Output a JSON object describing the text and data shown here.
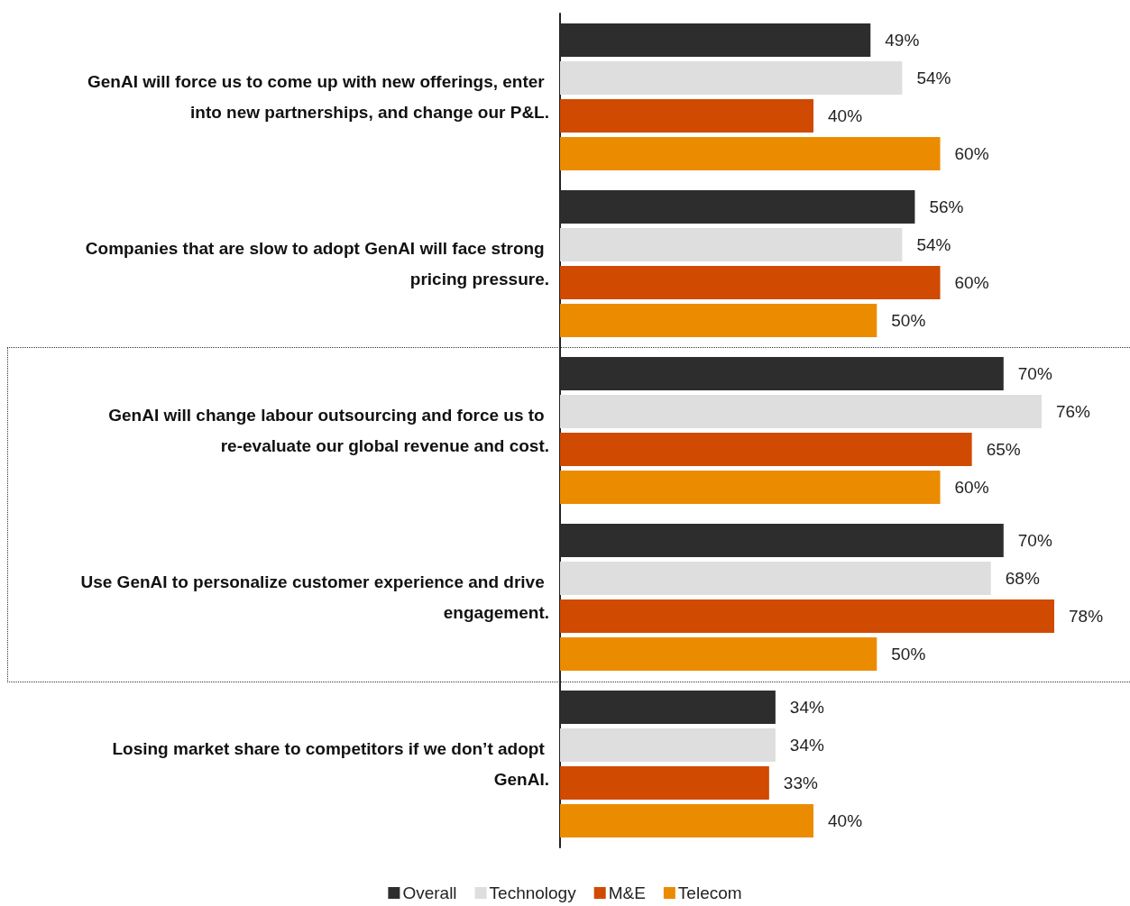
{
  "chart_data": {
    "type": "bar",
    "orientation": "horizontal",
    "categories": [
      "GenAI will force us to come up with new offerings, enter into new partnerships, and change our P&L.",
      "Companies that are slow to adopt GenAI will face strong pricing pressure.",
      "GenAI will change labour outsourcing and force us to re-evaluate our global revenue and cost.",
      "Use GenAI to personalize customer experience and drive engagement.",
      "Losing market share to competitors if we don’t adopt GenAI."
    ],
    "series": [
      {
        "name": "Overall",
        "color": "#2d2d2d",
        "values": [
          49,
          56,
          70,
          70,
          34
        ],
        "value_labels": [
          "49%",
          "56%",
          "70%",
          "70%",
          "34%"
        ]
      },
      {
        "name": "Technology",
        "color": "#dedede",
        "values": [
          54,
          54,
          76,
          68,
          34
        ],
        "value_labels": [
          "54%",
          "54%",
          "76%",
          "68%",
          "34%"
        ]
      },
      {
        "name": "M&E",
        "color": "#d04a02",
        "values": [
          40,
          60,
          65,
          78,
          33
        ],
        "value_labels": [
          "40%",
          "60%",
          "65%",
          "78%",
          "33%"
        ]
      },
      {
        "name": "Telecom",
        "color": "#eb8c00",
        "values": [
          60,
          50,
          60,
          50,
          40
        ],
        "value_labels": [
          "60%",
          "50%",
          "60%",
          "50%",
          "40%"
        ]
      }
    ],
    "legend": "bottom",
    "tick_labels": "y"
  }
}
